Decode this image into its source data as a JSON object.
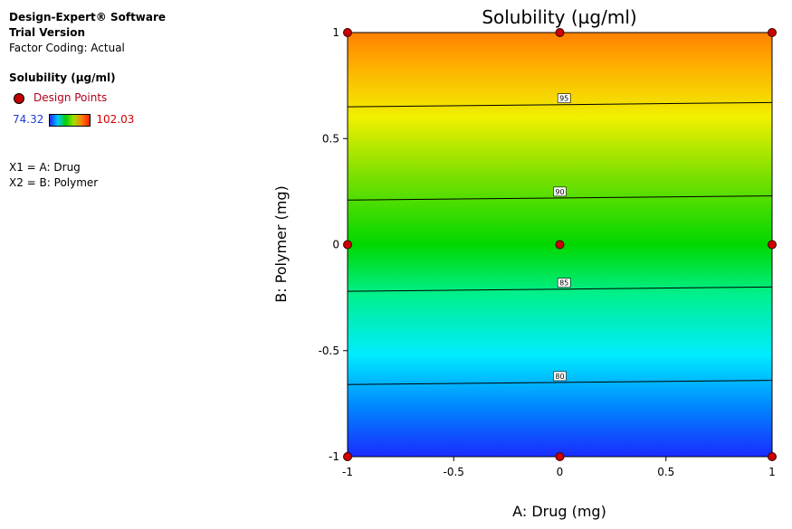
{
  "legend": {
    "software": "Design-Expert® Software",
    "version": "Trial Version",
    "coding": "Factor Coding: Actual",
    "response": "Solubility (µg/ml)",
    "design_points_label": "Design Points",
    "scale_low": "74.32",
    "scale_high": "102.03",
    "x1": "X1 = A: Drug",
    "x2": "X2 = B: Polymer"
  },
  "chart_data": {
    "type": "contour",
    "title": "Solubility (µg/ml)",
    "xlabel": "A: Drug (mg)",
    "ylabel": "B: Polymer (mg)",
    "xlim": [
      -1,
      1
    ],
    "ylim": [
      -1,
      1
    ],
    "x_ticks": [
      "-1",
      "-0.5",
      "0",
      "0.5",
      "1"
    ],
    "y_ticks": [
      "-1",
      "-0.5",
      "0",
      "0.5",
      "1"
    ],
    "color_range": [
      74.32,
      102.03
    ],
    "color_low": "#1a2bff",
    "color_high": "#ff8000",
    "contours": [
      {
        "level": "80",
        "points": [
          [
            -1,
            -0.66
          ],
          [
            1,
            -0.64
          ]
        ],
        "label_at": [
          0,
          -0.62
        ]
      },
      {
        "level": "85",
        "points": [
          [
            -1,
            -0.22
          ],
          [
            1,
            -0.2
          ]
        ],
        "label_at": [
          0.02,
          -0.18
        ]
      },
      {
        "level": "90",
        "points": [
          [
            -1,
            0.21
          ],
          [
            1,
            0.23
          ]
        ],
        "label_at": [
          0,
          0.25
        ]
      },
      {
        "level": "95",
        "points": [
          [
            -1,
            0.65
          ],
          [
            1,
            0.67
          ]
        ],
        "label_at": [
          0.02,
          0.69
        ]
      }
    ],
    "design_points": [
      [
        -1,
        1
      ],
      [
        0,
        1
      ],
      [
        1,
        1
      ],
      [
        -1,
        0
      ],
      [
        0,
        0
      ],
      [
        1,
        0
      ],
      [
        -1,
        -1
      ],
      [
        0,
        -1
      ],
      [
        1,
        -1
      ]
    ]
  }
}
